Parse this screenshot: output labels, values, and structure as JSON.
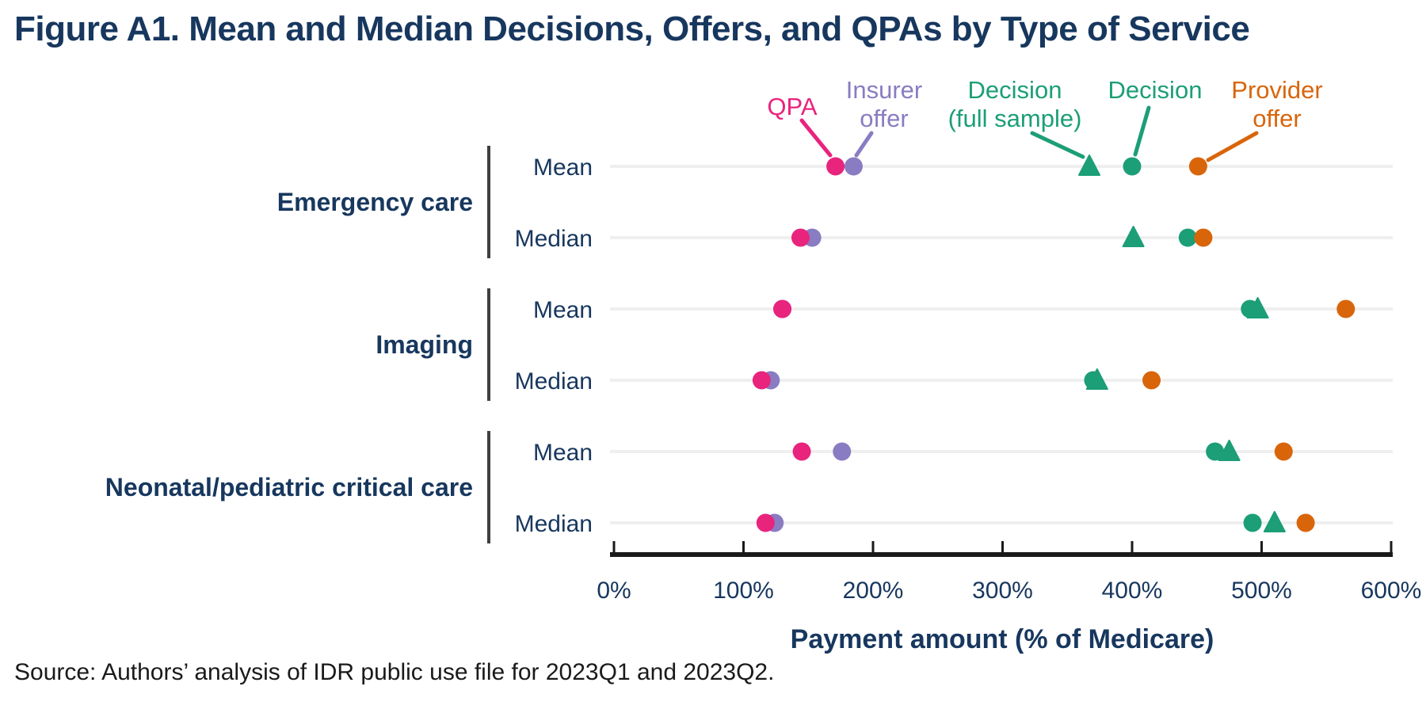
{
  "title": "Figure A1. Mean and Median Decisions, Offers, and QPAs by Type of Service",
  "source_note": "Source: Authors’ analysis of IDR public use file for 2023Q1 and 2023Q2.",
  "colors": {
    "title_navy": "#17375E",
    "qpa_pink": "#E8247D",
    "insurer_purple": "#8A7CC2",
    "decision_teal": "#1C9E77",
    "provider_orange": "#D9650B",
    "row_line_gray": "#EFEFEF",
    "bracket_gray": "#3F3F3F",
    "axis_black": "#1A1A1A"
  },
  "chart_data": {
    "type": "scatter",
    "xlabel": "Payment amount (% of Medicare)",
    "xlim": [
      0,
      600
    ],
    "x_tick_values": [
      0,
      100,
      200,
      300,
      400,
      500,
      600
    ],
    "x_tick_labels": [
      "0%",
      "100%",
      "200%",
      "300%",
      "400%",
      "500%",
      "600%"
    ],
    "grid": "row-lines-only",
    "legend_position": "annotations-above-first-row",
    "series_legend": [
      {
        "name": "QPA",
        "color_key": "qpa_pink",
        "marker": "circle"
      },
      {
        "name": "Insurer offer",
        "color_key": "insurer_purple",
        "marker": "circle"
      },
      {
        "name": "Decision (full sample)",
        "color_key": "decision_teal",
        "marker": "triangle"
      },
      {
        "name": "Decision",
        "color_key": "decision_teal",
        "marker": "circle"
      },
      {
        "name": "Provider offer",
        "color_key": "provider_orange",
        "marker": "circle"
      }
    ],
    "groups": [
      {
        "label": "Emergency care",
        "rows": [
          {
            "label": "Mean",
            "qpa": 171,
            "insurer_offer": 185,
            "decision_full_sample": 367,
            "decision": 400,
            "provider_offer": 451
          },
          {
            "label": "Median",
            "qpa": 144,
            "insurer_offer": 153,
            "decision_full_sample": 401,
            "decision": 443,
            "provider_offer": 455
          }
        ]
      },
      {
        "label": "Imaging",
        "rows": [
          {
            "label": "Mean",
            "qpa": 130,
            "insurer_offer": 130,
            "decision_full_sample": 497,
            "decision": 491,
            "provider_offer": 565
          },
          {
            "label": "Median",
            "qpa": 114,
            "insurer_offer": 121,
            "decision_full_sample": 373,
            "decision": 370,
            "provider_offer": 415
          }
        ]
      },
      {
        "label": "Neonatal/pediatric critical care",
        "rows": [
          {
            "label": "Mean",
            "qpa": 145,
            "insurer_offer": 176,
            "decision_full_sample": 475,
            "decision": 464,
            "provider_offer": 517
          },
          {
            "label": "Median",
            "qpa": 117,
            "insurer_offer": 124,
            "decision_full_sample": 510,
            "decision": 493,
            "provider_offer": 534
          }
        ]
      }
    ],
    "annotations": [
      {
        "target": "qpa",
        "color_key": "qpa_pink",
        "lines": [
          "QPA"
        ]
      },
      {
        "target": "insurer_offer",
        "color_key": "insurer_purple",
        "lines": [
          "Insurer",
          "offer"
        ]
      },
      {
        "target": "decision_full_sample",
        "color_key": "decision_teal",
        "lines": [
          "Decision",
          "(full sample)"
        ]
      },
      {
        "target": "decision",
        "color_key": "decision_teal",
        "lines": [
          "Decision"
        ]
      },
      {
        "target": "provider_offer",
        "color_key": "provider_orange",
        "lines": [
          "Provider",
          "offer"
        ]
      }
    ]
  }
}
